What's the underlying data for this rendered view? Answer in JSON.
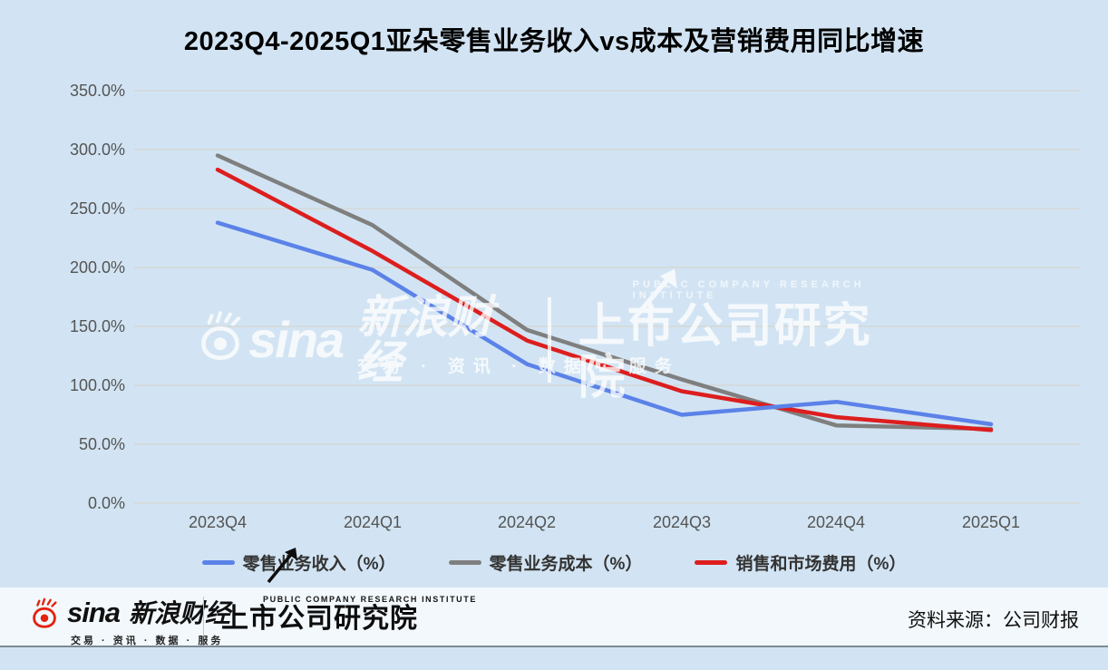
{
  "title": "2023Q4-2025Q1亚朵零售业务收入vs成本及营销费用同比增速",
  "chart_data": {
    "type": "line",
    "categories": [
      "2023Q4",
      "2024Q1",
      "2024Q2",
      "2024Q3",
      "2024Q4",
      "2025Q1"
    ],
    "series": [
      {
        "name": "零售业务收入（%）",
        "color": "#5b82e8",
        "values": [
          238,
          198,
          118,
          75,
          86,
          67
        ]
      },
      {
        "name": "零售业务成本（%）",
        "color": "#7f7f7f",
        "values": [
          295,
          236,
          147,
          105,
          66,
          63
        ]
      },
      {
        "name": "销售和市场费用（%）",
        "color": "#dd1e1e",
        "values": [
          283,
          214,
          138,
          95,
          73,
          62
        ]
      }
    ],
    "yticks": [
      "350.0%",
      "300.0%",
      "250.0%",
      "200.0%",
      "150.0%",
      "100.0%",
      "50.0%",
      "0.0%"
    ],
    "ylim": [
      0,
      350
    ],
    "grid": true,
    "legend_position": "bottom"
  },
  "watermark": {
    "sina_word": "sina",
    "brand": "新浪财经",
    "tagline": "交易 · 资讯 · 数据 · 服务",
    "institute_en": "PUBLIC COMPANY RESEARCH INSTITUTE",
    "institute": "上市公司研究院"
  },
  "footer": {
    "sina_word": "sina",
    "sina_brand": "新浪财经",
    "sina_tagline": "交易 · 资讯 · 数据 · 服务",
    "institute_en": "PUBLIC COMPANY RESEARCH INSTITUTE",
    "institute": "上市公司研究院",
    "source": "资料来源：公司财报"
  },
  "colors": {
    "background": "#d2e4f3",
    "grid_line": "#d8d2c8",
    "axis_text": "#545454",
    "title_text": "#000000",
    "footer_band": "#f2f8fc",
    "footer_rule": "#7c8a94",
    "sina_red": "#e3220f"
  }
}
